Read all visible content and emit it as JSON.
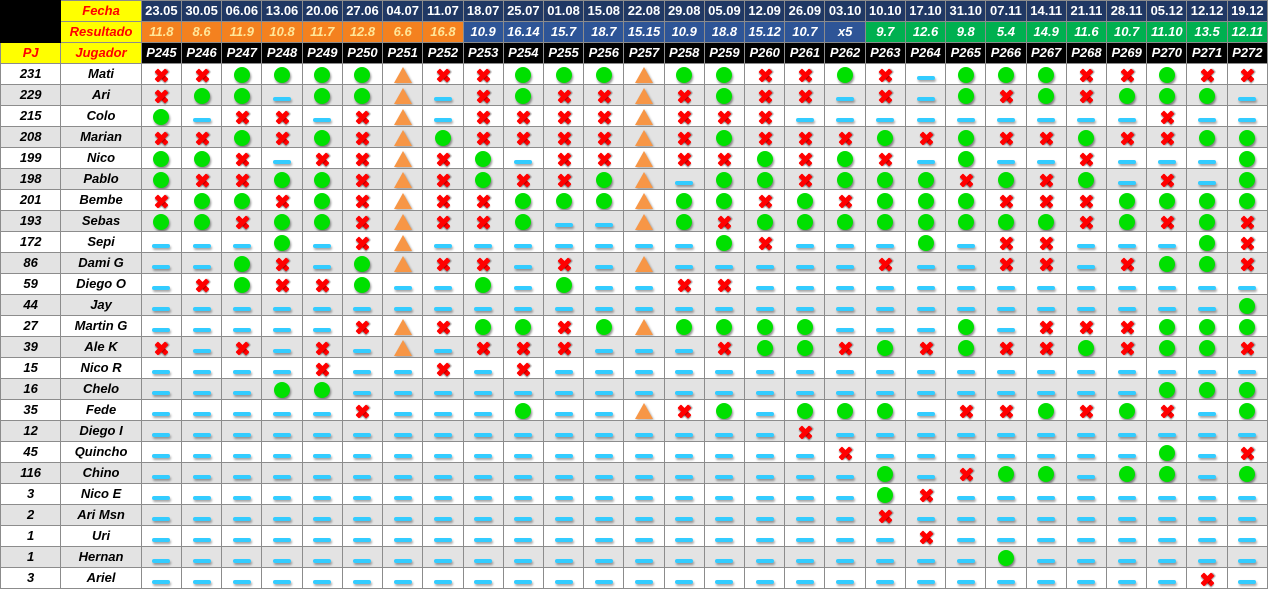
{
  "labels": {
    "fecha": "Fecha",
    "resultado": "Resultado",
    "pj": "PJ",
    "jugador": "Jugador"
  },
  "matches": [
    {
      "date": "23.05",
      "result": "11.8",
      "band": "orange",
      "code": "P245"
    },
    {
      "date": "30.05",
      "result": "8.6",
      "band": "orange",
      "code": "P246"
    },
    {
      "date": "06.06",
      "result": "11.9",
      "band": "orange",
      "code": "P247"
    },
    {
      "date": "13.06",
      "result": "10.8",
      "band": "orange",
      "code": "P248"
    },
    {
      "date": "20.06",
      "result": "11.7",
      "band": "orange",
      "code": "P249"
    },
    {
      "date": "27.06",
      "result": "12.8",
      "band": "orange",
      "code": "P250"
    },
    {
      "date": "04.07",
      "result": "6.6",
      "band": "orange",
      "code": "P251"
    },
    {
      "date": "11.07",
      "result": "16.8",
      "band": "orange",
      "code": "P252"
    },
    {
      "date": "18.07",
      "result": "10.9",
      "band": "blue",
      "code": "P253"
    },
    {
      "date": "25.07",
      "result": "16.14",
      "band": "blue",
      "code": "P254"
    },
    {
      "date": "01.08",
      "result": "15.7",
      "band": "blue",
      "code": "P255"
    },
    {
      "date": "15.08",
      "result": "18.7",
      "band": "blue",
      "code": "P256"
    },
    {
      "date": "22.08",
      "result": "15.15",
      "band": "blue",
      "code": "P257"
    },
    {
      "date": "29.08",
      "result": "10.9",
      "band": "blue",
      "code": "P258"
    },
    {
      "date": "05.09",
      "result": "18.8",
      "band": "blue",
      "code": "P259"
    },
    {
      "date": "12.09",
      "result": "15.12",
      "band": "blue",
      "code": "P260"
    },
    {
      "date": "26.09",
      "result": "10.7",
      "band": "blue",
      "code": "P261"
    },
    {
      "date": "03.10",
      "result": "x5",
      "band": "blue",
      "code": "P262"
    },
    {
      "date": "10.10",
      "result": "9.7",
      "band": "green",
      "code": "P263"
    },
    {
      "date": "17.10",
      "result": "12.6",
      "band": "green",
      "code": "P264"
    },
    {
      "date": "31.10",
      "result": "9.8",
      "band": "green",
      "code": "P265"
    },
    {
      "date": "07.11",
      "result": "5.4",
      "band": "green",
      "code": "P266"
    },
    {
      "date": "14.11",
      "result": "14.9",
      "band": "green",
      "code": "P267"
    },
    {
      "date": "21.11",
      "result": "11.6",
      "band": "green",
      "code": "P268"
    },
    {
      "date": "28.11",
      "result": "10.7",
      "band": "green",
      "code": "P269"
    },
    {
      "date": "05.12",
      "result": "11.10",
      "band": "green",
      "code": "P270"
    },
    {
      "date": "12.12",
      "result": "13.5",
      "band": "green",
      "code": "P271"
    },
    {
      "date": "19.12",
      "result": "12.11",
      "band": "green",
      "code": "P272"
    }
  ],
  "legend_icons": {
    "W": "green-circle-icon",
    "L": "red-x-icon",
    "D": "orange-triangle-icon",
    "-": "cyan-dash-icon"
  },
  "players": [
    {
      "pj": "231",
      "name": "Mati",
      "marks": "LLWWWWDLLWWWDWWLLWL-WWWLLWLL"
    },
    {
      "pj": "229",
      "name": "Ari",
      "marks": "LWW-WWD-LWLLDLWLL-L-WLWLWWW-"
    },
    {
      "pj": "215",
      "name": "Colo",
      "marks": "W-LL-LD-LLLLDLLL---------L--"
    },
    {
      "pj": "208",
      "name": "Marian",
      "marks": "LLWLWLDWLLLLDLWLLLWLWLLWLLWW"
    },
    {
      "pj": "199",
      "name": "Nico",
      "marks": "WWL-LLDLW-LLDLLWLWL-W--L---W"
    },
    {
      "pj": "198",
      "name": "Pablo",
      "marks": "WLLWWLDLWLLWD-WWLWWWLWLW-L-W"
    },
    {
      "pj": "201",
      "name": "Bembe",
      "marks": "LWWLWLDLLWWWDWWLWLWWWLLLWWWW"
    },
    {
      "pj": "193",
      "name": "Sebas",
      "marks": "WWLWWLDLLW--DWLWWWWWWWWLWLWL"
    },
    {
      "pj": "172",
      "name": "Sepi",
      "marks": "---W-LD-------WL---W-LL---WL"
    },
    {
      "pj": "86",
      "name": "Dami G",
      "marks": "--WL-WDLL-L-D-----L--LL-LWWL"
    },
    {
      "pj": "59",
      "name": "Diego O",
      "marks": "-LWLLW--W-W--LL-------------"
    },
    {
      "pj": "44",
      "name": "Jay",
      "marks": "---------------------------W"
    },
    {
      "pj": "27",
      "name": "Martin G",
      "marks": "-----LDLWWLWDWWWW---W-LLLWWW"
    },
    {
      "pj": "39",
      "name": "Ale K",
      "marks": "L-L-L-D-LLL---LWWLWLWLLWLWWL"
    },
    {
      "pj": "15",
      "name": "Nico R",
      "marks": "----L--L-L------------------"
    },
    {
      "pj": "16",
      "name": "Chelo",
      "marks": "---WW--------------------WWW"
    },
    {
      "pj": "35",
      "name": "Fede",
      "marks": "-----L---W--DLW-WWW-LLWLWL-W"
    },
    {
      "pj": "12",
      "name": "Diego I",
      "marks": "----------------L-----------"
    },
    {
      "pj": "45",
      "name": "Quincho",
      "marks": "-----------------L-------W-L"
    },
    {
      "pj": "116",
      "name": "Chino",
      "marks": "------------------W-LWW-WW-W"
    },
    {
      "pj": "3",
      "name": "Nico E",
      "marks": "------------------WL--------"
    },
    {
      "pj": "2",
      "name": "Ari Msn",
      "marks": "------------------L---------"
    },
    {
      "pj": "1",
      "name": "Uri",
      "marks": "-------------------L--------"
    },
    {
      "pj": "1",
      "name": "Hernan",
      "marks": "---------------------W------"
    },
    {
      "pj": "3",
      "name": "Ariel",
      "marks": "--------------------------L-"
    }
  ]
}
